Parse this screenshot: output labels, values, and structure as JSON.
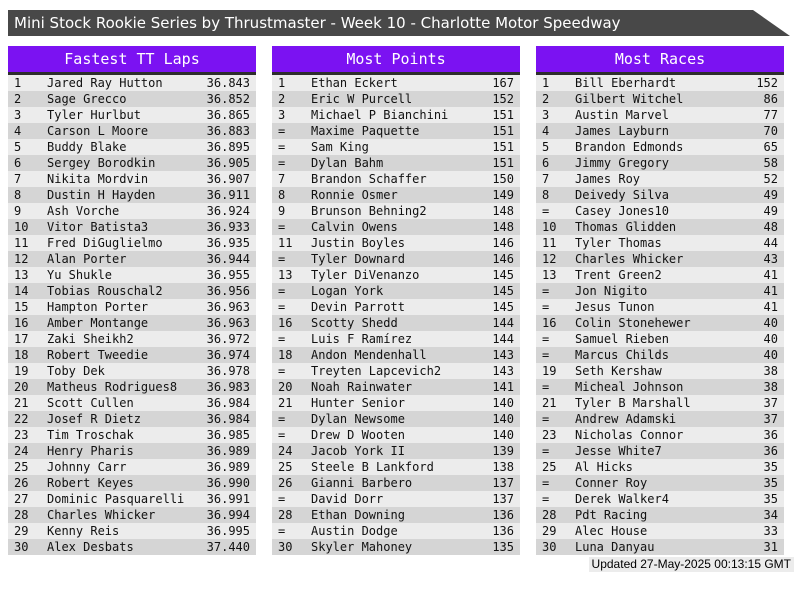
{
  "title": "Mini Stock Rookie Series by Thrustmaster - Week 10 - Charlotte Motor Speedway",
  "footer": {
    "updated": "Updated 27-May-2025 00:13:15 GMT"
  },
  "colors": {
    "title_bar_bg": "#484848",
    "board_header_bg": "#7b12f2",
    "row_odd_bg": "#ececec",
    "row_even_bg": "#d5d5d5",
    "separator": "#2d2d2d"
  },
  "boards": [
    {
      "title": "Fastest TT Laps",
      "rows": [
        {
          "rank": "1",
          "name": "Jared Ray Hutton",
          "value": "36.843"
        },
        {
          "rank": "2",
          "name": "Sage Grecco",
          "value": "36.852"
        },
        {
          "rank": "3",
          "name": "Tyler Hurlbut",
          "value": "36.865"
        },
        {
          "rank": "4",
          "name": "Carson L Moore",
          "value": "36.883"
        },
        {
          "rank": "5",
          "name": "Buddy Blake",
          "value": "36.895"
        },
        {
          "rank": "6",
          "name": "Sergey Borodkin",
          "value": "36.905"
        },
        {
          "rank": "7",
          "name": "Nikita Mordvin",
          "value": "36.907"
        },
        {
          "rank": "8",
          "name": "Dustin H Hayden",
          "value": "36.911"
        },
        {
          "rank": "9",
          "name": "Ash Vorche",
          "value": "36.924"
        },
        {
          "rank": "10",
          "name": "Vitor Batista3",
          "value": "36.933"
        },
        {
          "rank": "11",
          "name": "Fred DiGuglielmo",
          "value": "36.935"
        },
        {
          "rank": "12",
          "name": "Alan Porter",
          "value": "36.944"
        },
        {
          "rank": "13",
          "name": "Yu Shukle",
          "value": "36.955"
        },
        {
          "rank": "14",
          "name": "Tobias Rouschal2",
          "value": "36.956"
        },
        {
          "rank": "15",
          "name": "Hampton Porter",
          "value": "36.963"
        },
        {
          "rank": "16",
          "name": "Amber Montange",
          "value": "36.963"
        },
        {
          "rank": "17",
          "name": "Zaki Sheikh2",
          "value": "36.972"
        },
        {
          "rank": "18",
          "name": "Robert Tweedie",
          "value": "36.974"
        },
        {
          "rank": "19",
          "name": "Toby Dek",
          "value": "36.978"
        },
        {
          "rank": "20",
          "name": "Matheus Rodrigues8",
          "value": "36.983"
        },
        {
          "rank": "21",
          "name": "Scott Cullen",
          "value": "36.984"
        },
        {
          "rank": "22",
          "name": "Josef R Dietz",
          "value": "36.984"
        },
        {
          "rank": "23",
          "name": "Tim Troschak",
          "value": "36.985"
        },
        {
          "rank": "24",
          "name": "Henry Pharis",
          "value": "36.989"
        },
        {
          "rank": "25",
          "name": "Johnny Carr",
          "value": "36.989"
        },
        {
          "rank": "26",
          "name": "Robert Keyes",
          "value": "36.990"
        },
        {
          "rank": "27",
          "name": "Dominic Pasquarelli",
          "value": "36.991"
        },
        {
          "rank": "28",
          "name": "Charles Whicker",
          "value": "36.994"
        },
        {
          "rank": "29",
          "name": "Kenny Reis",
          "value": "36.995"
        },
        {
          "rank": "30",
          "name": "Alex Desbats",
          "value": "37.440"
        }
      ]
    },
    {
      "title": "Most Points",
      "rows": [
        {
          "rank": "1",
          "name": "Ethan Eckert",
          "value": "167"
        },
        {
          "rank": "2",
          "name": "Eric W Purcell",
          "value": "152"
        },
        {
          "rank": "3",
          "name": "Michael P Bianchini",
          "value": "151"
        },
        {
          "rank": "=",
          "name": "Maxime Paquette",
          "value": "151"
        },
        {
          "rank": "=",
          "name": "Sam King",
          "value": "151"
        },
        {
          "rank": "=",
          "name": "Dylan Bahm",
          "value": "151"
        },
        {
          "rank": "7",
          "name": "Brandon Schaffer",
          "value": "150"
        },
        {
          "rank": "8",
          "name": "Ronnie Osmer",
          "value": "149"
        },
        {
          "rank": "9",
          "name": "Brunson Behning2",
          "value": "148"
        },
        {
          "rank": "=",
          "name": "Calvin Owens",
          "value": "148"
        },
        {
          "rank": "11",
          "name": "Justin Boyles",
          "value": "146"
        },
        {
          "rank": "=",
          "name": "Tyler Downard",
          "value": "146"
        },
        {
          "rank": "13",
          "name": "Tyler DiVenanzo",
          "value": "145"
        },
        {
          "rank": "=",
          "name": "Logan York",
          "value": "145"
        },
        {
          "rank": "=",
          "name": "Devin Parrott",
          "value": "145"
        },
        {
          "rank": "16",
          "name": "Scotty Shedd",
          "value": "144"
        },
        {
          "rank": "=",
          "name": "Luis F Ramírez",
          "value": "144"
        },
        {
          "rank": "18",
          "name": "Andon Mendenhall",
          "value": "143"
        },
        {
          "rank": "=",
          "name": "Treyten Lapcevich2",
          "value": "143"
        },
        {
          "rank": "20",
          "name": "Noah Rainwater",
          "value": "141"
        },
        {
          "rank": "21",
          "name": "Hunter Senior",
          "value": "140"
        },
        {
          "rank": "=",
          "name": "Dylan Newsome",
          "value": "140"
        },
        {
          "rank": "=",
          "name": "Drew D Wooten",
          "value": "140"
        },
        {
          "rank": "24",
          "name": "Jacob York II",
          "value": "139"
        },
        {
          "rank": "25",
          "name": "Steele B Lankford",
          "value": "138"
        },
        {
          "rank": "26",
          "name": "Gianni Barbero",
          "value": "137"
        },
        {
          "rank": "=",
          "name": "David Dorr",
          "value": "137"
        },
        {
          "rank": "28",
          "name": "Ethan Downing",
          "value": "136"
        },
        {
          "rank": "=",
          "name": "Austin Dodge",
          "value": "136"
        },
        {
          "rank": "30",
          "name": "Skyler Mahoney",
          "value": "135"
        }
      ]
    },
    {
      "title": "Most Races",
      "rows": [
        {
          "rank": "1",
          "name": "Bill Eberhardt",
          "value": "152"
        },
        {
          "rank": "2",
          "name": "Gilbert Witchel",
          "value": "86"
        },
        {
          "rank": "3",
          "name": "Austin Marvel",
          "value": "77"
        },
        {
          "rank": "4",
          "name": "James Layburn",
          "value": "70"
        },
        {
          "rank": "5",
          "name": "Brandon Edmonds",
          "value": "65"
        },
        {
          "rank": "6",
          "name": "Jimmy Gregory",
          "value": "58"
        },
        {
          "rank": "7",
          "name": "James Roy",
          "value": "52"
        },
        {
          "rank": "8",
          "name": "Deivedy Silva",
          "value": "49"
        },
        {
          "rank": "=",
          "name": "Casey Jones10",
          "value": "49"
        },
        {
          "rank": "10",
          "name": "Thomas Glidden",
          "value": "48"
        },
        {
          "rank": "11",
          "name": "Tyler Thomas",
          "value": "44"
        },
        {
          "rank": "12",
          "name": "Charles Whicker",
          "value": "43"
        },
        {
          "rank": "13",
          "name": "Trent Green2",
          "value": "41"
        },
        {
          "rank": "=",
          "name": "Jon Nigito",
          "value": "41"
        },
        {
          "rank": "=",
          "name": "Jesus Tunon",
          "value": "41"
        },
        {
          "rank": "16",
          "name": "Colin Stonehewer",
          "value": "40"
        },
        {
          "rank": "=",
          "name": "Samuel Rieben",
          "value": "40"
        },
        {
          "rank": "=",
          "name": "Marcus Childs",
          "value": "40"
        },
        {
          "rank": "19",
          "name": "Seth Kershaw",
          "value": "38"
        },
        {
          "rank": "=",
          "name": "Micheal Johnson",
          "value": "38"
        },
        {
          "rank": "21",
          "name": "Tyler B Marshall",
          "value": "37"
        },
        {
          "rank": "=",
          "name": "Andrew Adamski",
          "value": "37"
        },
        {
          "rank": "23",
          "name": "Nicholas Connor",
          "value": "36"
        },
        {
          "rank": "=",
          "name": "Jesse White7",
          "value": "36"
        },
        {
          "rank": "25",
          "name": "Al Hicks",
          "value": "35"
        },
        {
          "rank": "=",
          "name": "Conner Roy",
          "value": "35"
        },
        {
          "rank": "=",
          "name": "Derek Walker4",
          "value": "35"
        },
        {
          "rank": "28",
          "name": "Pdt Racing",
          "value": "34"
        },
        {
          "rank": "29",
          "name": "Alec House",
          "value": "33"
        },
        {
          "rank": "30",
          "name": "Luna Danyau",
          "value": "31"
        }
      ]
    }
  ]
}
